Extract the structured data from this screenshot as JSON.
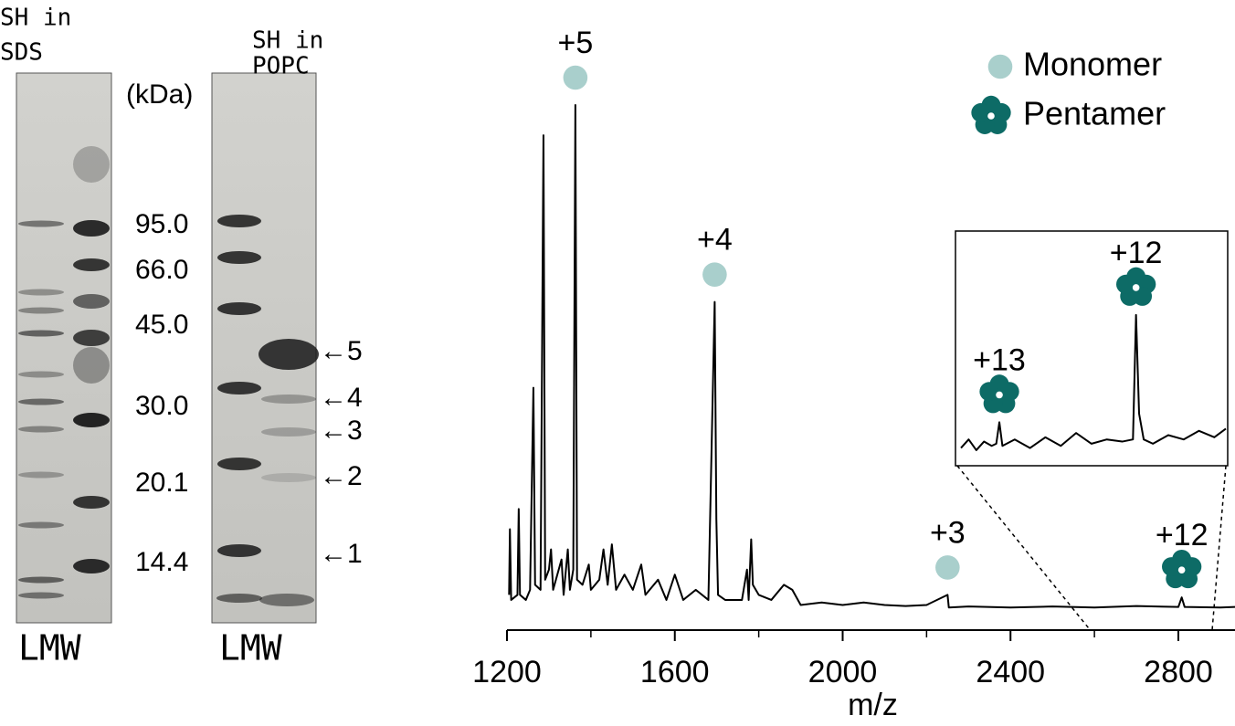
{
  "gels": [
    {
      "title": [
        "SH in",
        "SDS"
      ],
      "lane_label": "LMW"
    },
    {
      "title": [
        "SH in",
        "POPC"
      ],
      "lane_label": "LMW"
    }
  ],
  "mw_unit": "(kDa)",
  "mw_markers": [
    "95.0",
    "66.0",
    "45.0",
    "30.0",
    "20.1",
    "14.4"
  ],
  "band_labels": [
    "←5",
    "←4",
    "←3",
    "←2",
    "←1"
  ],
  "chart_data": [
    {
      "type": "line",
      "xlabel": "m/z",
      "color": "#000000",
      "x": [
        1205,
        1207,
        1210,
        1225,
        1228,
        1231,
        1245,
        1255,
        1263,
        1267,
        1280,
        1287,
        1291,
        1300,
        1305,
        1310,
        1320,
        1330,
        1335,
        1345,
        1350,
        1358,
        1363,
        1367,
        1380,
        1395,
        1400,
        1420,
        1430,
        1440,
        1450,
        1460,
        1480,
        1500,
        1520,
        1530,
        1560,
        1580,
        1600,
        1620,
        1650,
        1680,
        1695,
        1699,
        1703,
        1720,
        1760,
        1772,
        1776,
        1782,
        1786,
        1800,
        1830,
        1860,
        1880,
        1900,
        1950,
        2000,
        2050,
        2100,
        2150,
        2200,
        2250,
        2253,
        2300,
        2400,
        2500,
        2600,
        2700,
        2800,
        2808,
        2815,
        2900,
        2935
      ],
      "values": [
        3,
        16,
        2,
        3,
        20,
        3,
        2,
        4,
        44,
        5,
        4,
        94,
        6,
        8,
        12,
        4,
        7,
        10,
        3,
        12,
        4,
        8,
        100,
        6,
        5,
        9,
        4,
        6,
        12,
        5,
        13,
        4,
        7,
        4,
        9,
        3,
        6,
        2,
        7,
        2,
        4,
        2,
        61,
        18,
        3,
        2,
        2,
        8,
        2,
        14,
        5,
        3,
        2,
        5,
        4,
        1,
        1.5,
        1,
        1.5,
        1,
        0.8,
        1,
        3,
        0.5,
        0.7,
        0.5,
        0.7,
        0.5,
        0.8,
        0.6,
        2.5,
        0.6,
        0.5,
        0.6
      ],
      "xlim": [
        1200,
        2935
      ],
      "xticks": [
        1200,
        1600,
        2000,
        2400,
        2800
      ],
      "ylim": [
        0,
        100
      ],
      "legend": [
        {
          "name": "Monomer",
          "color": "#a9cfcc"
        },
        {
          "name": "Pentamer",
          "color": "#0d6b66"
        }
      ],
      "annotations": [
        {
          "label": "+5",
          "x": 1363,
          "marker": "Monomer"
        },
        {
          "label": "+4",
          "x": 1695,
          "marker": "Monomer"
        },
        {
          "label": "+3",
          "x": 2250,
          "marker": "Monomer"
        },
        {
          "label": "+12",
          "x": 2808,
          "marker": "Pentamer"
        }
      ]
    },
    {
      "type": "line",
      "color": "#000000",
      "x": [
        2590,
        2600,
        2610,
        2620,
        2630,
        2636,
        2640,
        2644,
        2660,
        2680,
        2700,
        2720,
        2740,
        2760,
        2780,
        2800,
        2814,
        2818,
        2822,
        2828,
        2840,
        2860,
        2880,
        2900,
        2920,
        2935
      ],
      "values": [
        4,
        8,
        3,
        7,
        5,
        6,
        16,
        5,
        8,
        4,
        9,
        5,
        11,
        6,
        8,
        7,
        8,
        66,
        20,
        8,
        6,
        10,
        8,
        12,
        9,
        13
      ],
      "xlim": [
        2590,
        2935
      ],
      "ylim": [
        0,
        100
      ],
      "annotations": [
        {
          "label": "+13",
          "x": 2640,
          "marker": "Pentamer"
        },
        {
          "label": "+12",
          "x": 2818,
          "marker": "Pentamer"
        }
      ]
    }
  ]
}
